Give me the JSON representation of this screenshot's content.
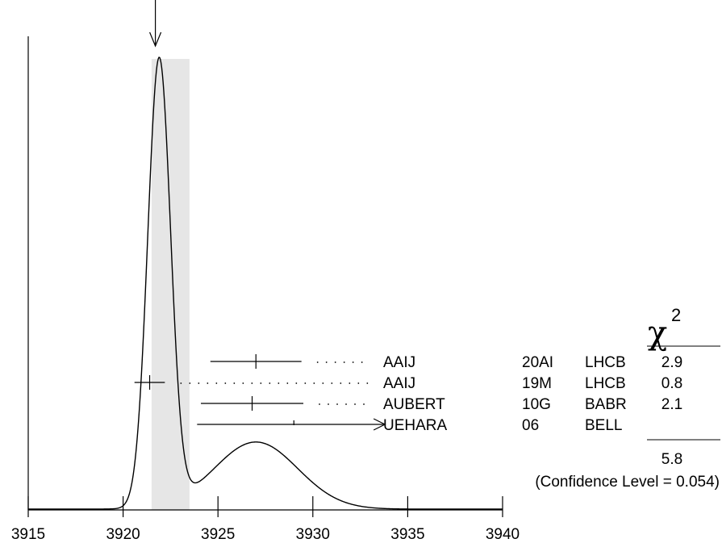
{
  "chart_data": {
    "type": "ideogram",
    "xlabel": "",
    "ylabel": "",
    "xlim": [
      3915,
      3940
    ],
    "x_ticks": [
      3915,
      3920,
      3925,
      3930,
      3935,
      3940
    ],
    "x_tick_labels": [
      "3915",
      "3920",
      "3925",
      "3930",
      "3935",
      "3940"
    ],
    "weighted_average": 3921.7,
    "average_error_band": [
      3921.5,
      3923.5
    ],
    "measurements": [
      {
        "value": 3927.0,
        "error_low": 3924.6,
        "error_high": 3929.4,
        "name": "AAIJ",
        "ref": "20AI",
        "experiment": "LHCB",
        "chi2": "2.9",
        "limit": false
      },
      {
        "value": 3921.4,
        "error_low": 3920.6,
        "error_high": 3922.2,
        "name": "AAIJ",
        "ref": "19M",
        "experiment": "LHCB",
        "chi2": "0.8",
        "limit": false
      },
      {
        "value": 3926.8,
        "error_low": 3924.1,
        "error_high": 3929.5,
        "name": "AUBERT",
        "ref": "10G",
        "experiment": "BABR",
        "chi2": "2.1",
        "limit": false
      },
      {
        "value": 3929.0,
        "error_low": 3923.9,
        "error_high": 3933.8,
        "name": "UEHARA",
        "ref": "06",
        "experiment": "BELL",
        "chi2": "",
        "limit": true
      }
    ],
    "curve_components": [
      {
        "mean": 3921.9,
        "sigma": 0.6,
        "amplitude": 1.0
      },
      {
        "mean": 3927.0,
        "sigma": 2.2,
        "amplitude": 0.15
      }
    ],
    "chi2_symbol": "χ",
    "chi2_exponent": "2",
    "chi2_total": "5.8",
    "confidence_label": "(Confidence Level = 0.054)"
  }
}
